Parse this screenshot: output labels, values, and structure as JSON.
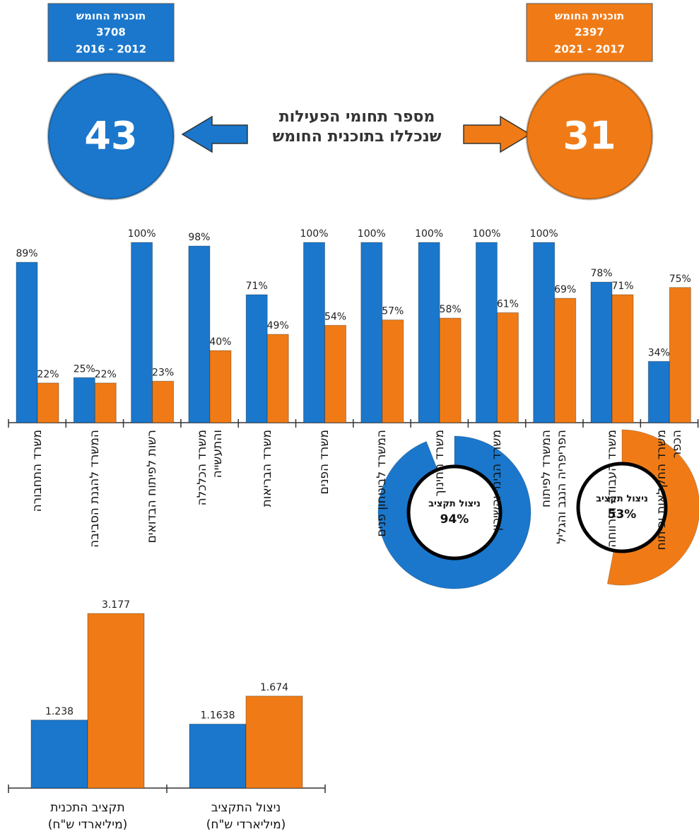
{
  "panels": [
    {
      "title": "תוכנית החומש",
      "budget": 3708,
      "years": "2016 - 2012",
      "count": 43,
      "color": "#1a77cc"
    },
    {
      "title": "תוכנית החומש",
      "budget": 2397,
      "years": "2021 - 2017",
      "count": 31,
      "color": "#f07b16"
    }
  ],
  "center_text": [
    "מספר תחומי הפעילות",
    "שנכללו בתוכנית החומש"
  ],
  "chart_data": [
    {
      "type": "bar",
      "categories": [
        "משרד התחבורה",
        "המשרד להגנת הסביבה",
        "רשות לפיתוח הבדואים",
        "משרד הכלכלה\nוהתעשייה",
        "משרד הבריאות",
        "משרד הפנים",
        "המשרד לביטחון פנים",
        "משרד החינוך",
        "משרד הבינוי והשיכון",
        "המשרד לפיתוח\nהפריפריה הנגב והגליל",
        "משרד העבודה והרווחה",
        "משרד החקלאות ופיתוח\nהכפר"
      ],
      "series": [
        {
          "color": "#1a77cc",
          "values": [
            89,
            25,
            100,
            98,
            71,
            100,
            100,
            100,
            100,
            100,
            78,
            34
          ],
          "value_labels": [
            "89%",
            "25%",
            "100%",
            "98%",
            "71%",
            "100%",
            "100%",
            "100%",
            "100%",
            "100%",
            "78%",
            "34%"
          ]
        },
        {
          "color": "#f07b16",
          "values": [
            22,
            22,
            23,
            40,
            49,
            54,
            57,
            58,
            61,
            69,
            71,
            75
          ],
          "value_labels": [
            "22%",
            "22%",
            "23%",
            "40%",
            "49%",
            "54%",
            "57%",
            "58%",
            "61%",
            "69%",
            "71%",
            "75%"
          ]
        }
      ]
    },
    {
      "type": "bar",
      "categories": [
        "תקציב התכנית\n(מיליארדי ש\"ח)",
        "ניצול התקציב\n(מיליארדי ש\"ח)"
      ],
      "series": [
        {
          "color": "#1a77cc",
          "values": [
            1.238,
            1.1638
          ]
        },
        {
          "color": "#f07b16",
          "values": [
            3.177,
            1.674
          ]
        }
      ]
    },
    {
      "type": "donut",
      "title": "ניצול תקציב",
      "values": [
        94
      ],
      "value_labels": [
        "94%"
      ],
      "color": "#1a77cc"
    },
    {
      "type": "donut",
      "title": "ניצול תקציב",
      "values": [
        53
      ],
      "value_labels": [
        "53%"
      ],
      "color": "#f07b16"
    }
  ]
}
